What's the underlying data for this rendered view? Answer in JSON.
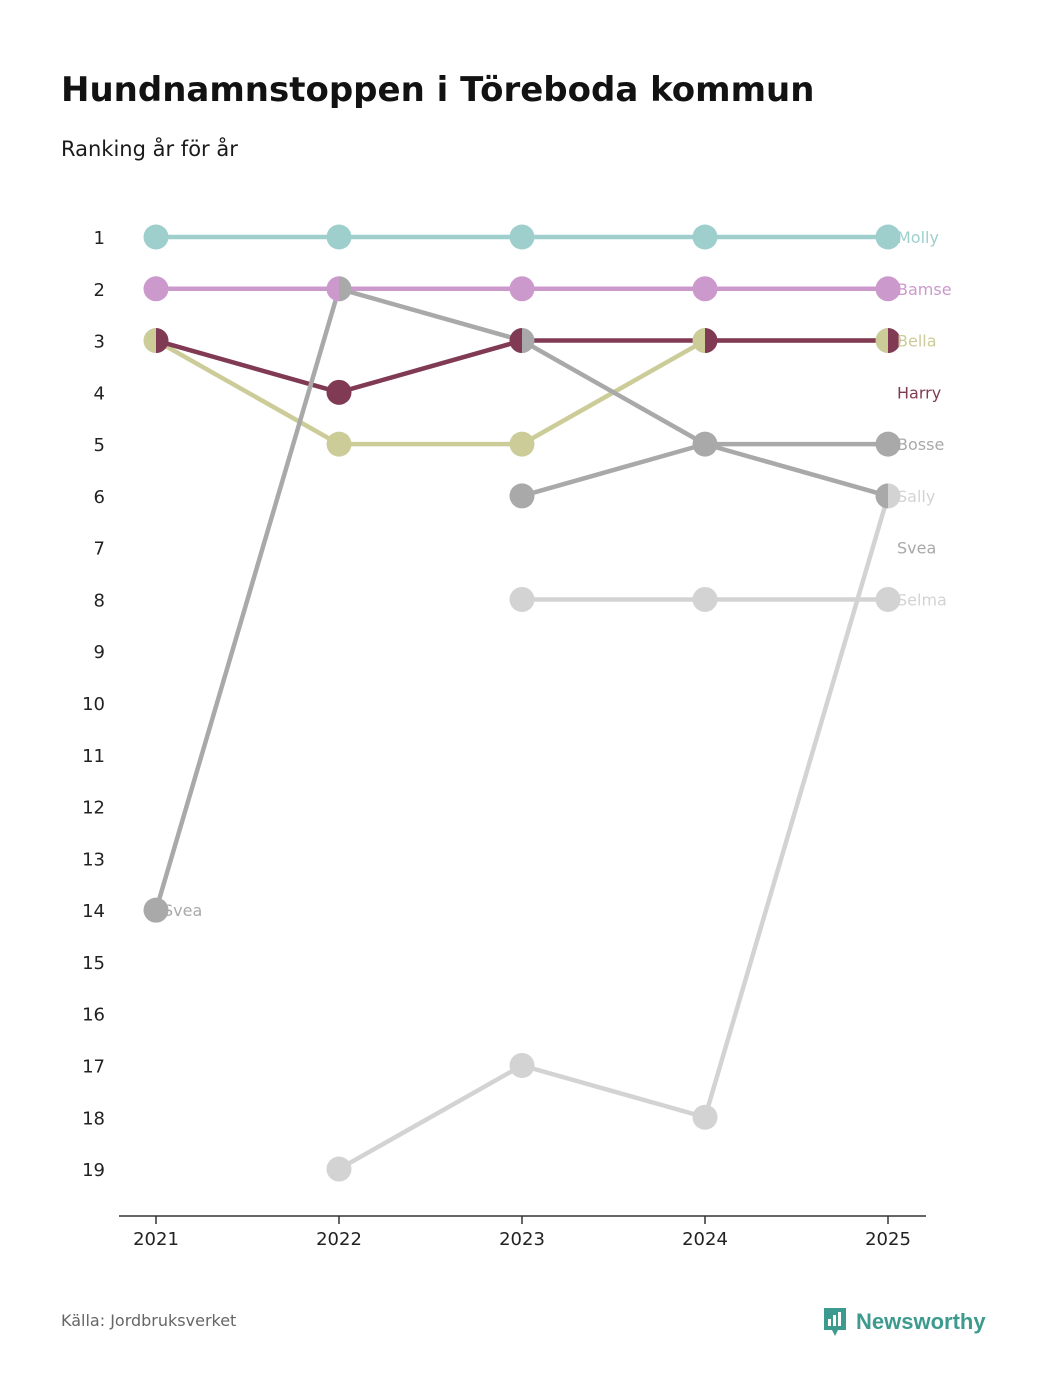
{
  "title": "Hundnamnstoppen i Töreboda kommun",
  "subtitle": "Ranking år för år",
  "footer": {
    "source": "Källa: Jordbruksverket",
    "brand": "Newsworthy"
  },
  "chart_data": {
    "type": "line",
    "subtype": "bump",
    "title": "Hundnamnstoppen i Töreboda kommun",
    "subtitle": "Ranking år för år",
    "x": [
      "2021",
      "2022",
      "2023",
      "2024",
      "2025"
    ],
    "y_ticks": [
      1,
      2,
      3,
      4,
      5,
      6,
      7,
      8,
      9,
      10,
      11,
      12,
      13,
      14,
      15,
      16,
      17,
      18,
      19
    ],
    "ylim": [
      1,
      19
    ],
    "y_inverted": true,
    "series": [
      {
        "name": "Molly",
        "color": "#9ecfcd",
        "values": [
          1,
          1,
          1,
          1,
          1
        ],
        "label": "Molly"
      },
      {
        "name": "Bamse",
        "color": "#cc99cc",
        "values": [
          2,
          2,
          2,
          2,
          2
        ],
        "label": "Bamse"
      },
      {
        "name": "Bella",
        "color": "#cccc99",
        "values": [
          3,
          5,
          5,
          3,
          3
        ],
        "label": "Bella"
      },
      {
        "name": "Harry",
        "color": "#803a54",
        "values": [
          3,
          4,
          3,
          3,
          3
        ],
        "label": "Harry"
      },
      {
        "name": "Bosse",
        "color": "#a9a9a9",
        "values": [
          null,
          null,
          6,
          5,
          5
        ],
        "label": "Bosse"
      },
      {
        "name": "Svea",
        "color": "#a9a9a9",
        "values": [
          14,
          2,
          3,
          5,
          6
        ],
        "label": "Svea",
        "start_label": "Svea"
      },
      {
        "name": "Selma",
        "color": "#d3d3d3",
        "values": [
          null,
          null,
          8,
          8,
          8
        ],
        "label": "Selma"
      },
      {
        "name": "Sally",
        "color": "#d3d3d3",
        "values": [
          null,
          19,
          17,
          18,
          6
        ],
        "label": "Sally"
      }
    ],
    "end_label_positions": {
      "Molly": 1,
      "Bamse": 2,
      "Bella": 3,
      "Harry": 4,
      "Bosse": 5,
      "Sally": 6,
      "Svea": 7,
      "Selma": 8
    }
  }
}
